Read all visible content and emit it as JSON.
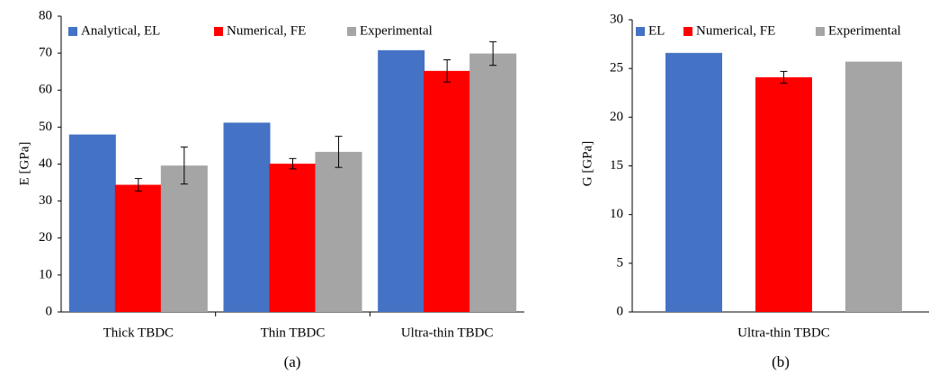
{
  "chart_data": [
    {
      "type": "bar",
      "caption": "(a)",
      "y_label": "E [GPa]",
      "categories": [
        "Thick TBDC",
        "Thin TBDC",
        "Ultra-thin TBDC"
      ],
      "series": [
        {
          "name": "Analytical, EL",
          "color": "#4472c4",
          "values": [
            48,
            51.2,
            70.8
          ]
        },
        {
          "name": "Numerical, FE",
          "color": "#ff0000",
          "values": [
            34.4,
            40.1,
            65.2
          ],
          "errors": [
            1.7,
            1.4,
            3
          ]
        },
        {
          "name": "Experimental",
          "color": "#a5a5a5",
          "values": [
            39.6,
            43.3,
            69.9
          ],
          "errors": [
            5,
            4.2,
            3.2
          ]
        }
      ],
      "ylim": [
        0,
        80
      ],
      "yticks": [
        0,
        10,
        20,
        30,
        40,
        50,
        60,
        70,
        80
      ]
    },
    {
      "type": "bar",
      "caption": "(b)",
      "y_label": "G [GPa]",
      "categories": [
        "Ultra-thin TBDC"
      ],
      "series": [
        {
          "name": "EL",
          "color": "#4472c4",
          "values": [
            26.6
          ]
        },
        {
          "name": "Numerical, FE",
          "color": "#ff0000",
          "values": [
            24.1
          ],
          "errors": [
            0.6
          ]
        },
        {
          "name": "Experimental",
          "color": "#a5a5a5",
          "values": [
            25.7
          ]
        }
      ],
      "ylim": [
        0,
        30
      ],
      "yticks": [
        0,
        5,
        10,
        15,
        20,
        25,
        30
      ]
    }
  ]
}
